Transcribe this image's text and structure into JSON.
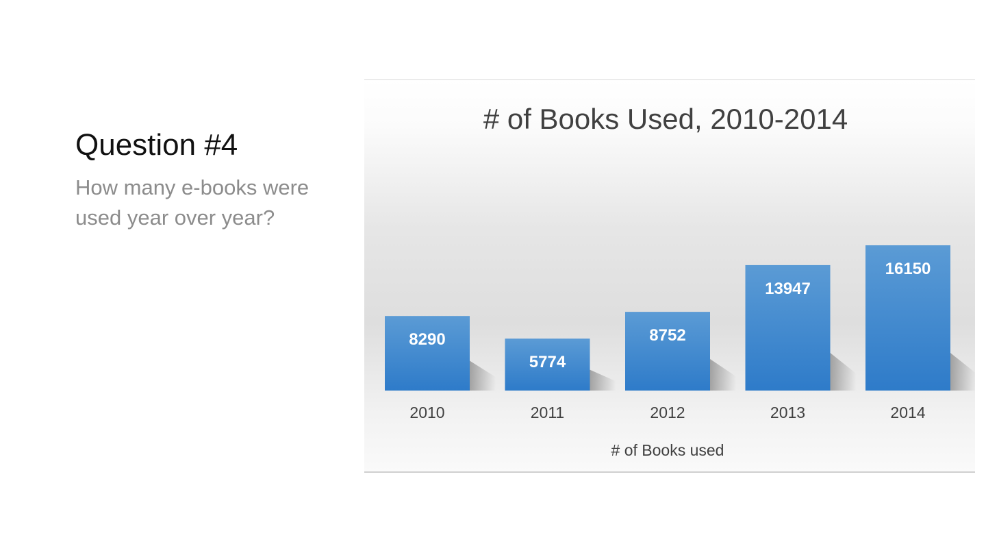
{
  "slide": {
    "title": "Question #4",
    "subtitle": "How many e-books were used year over year?"
  },
  "chart_data": {
    "type": "bar",
    "title": "# of Books Used, 2010-2014",
    "xlabel": "# of Books used",
    "ylabel": "",
    "categories": [
      "2010",
      "2011",
      "2012",
      "2013",
      "2014"
    ],
    "series": [
      {
        "name": "# of Books used",
        "values": [
          8290,
          5774,
          8752,
          13947,
          16150
        ]
      }
    ],
    "data_labels": true,
    "gridlines": false,
    "legend": "none",
    "colors": {
      "bar_top": "#5b9bd5",
      "bar_bottom": "#2e7bc9",
      "label": "#ffffff",
      "text": "#404040"
    }
  }
}
